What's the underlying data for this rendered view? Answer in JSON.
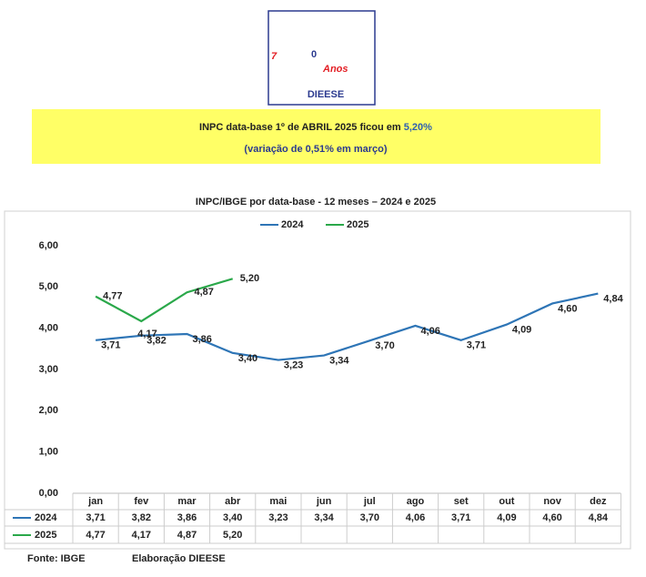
{
  "logo": {
    "digits": [
      "7",
      "0"
    ],
    "word": "Anos",
    "brand": "DIEESE"
  },
  "banner": {
    "line1": "INPC data-base 1º de ABRIL 2025 ficou em ",
    "highlight": "5,20%",
    "line2": "(variação de 0,51% em março)"
  },
  "chart_data": {
    "type": "line",
    "title": "INPC/IBGE por data-base - 12 meses – 2024 e 2025",
    "categories": [
      "jan",
      "fev",
      "mar",
      "abr",
      "mai",
      "jun",
      "jul",
      "ago",
      "set",
      "out",
      "nov",
      "dez"
    ],
    "series": [
      {
        "name": "2024",
        "color": "#2e75b6",
        "values": [
          3.71,
          3.82,
          3.86,
          3.4,
          3.23,
          3.34,
          3.7,
          4.06,
          3.71,
          4.09,
          4.6,
          4.84
        ],
        "value_labels": [
          "3,71",
          "3,82",
          "3,86",
          "3,40",
          "3,23",
          "3,34",
          "3,70",
          "4,06",
          "3,71",
          "4,09",
          "4,60",
          "4,84"
        ]
      },
      {
        "name": "2025",
        "color": "#2aa84a",
        "values": [
          4.77,
          4.17,
          4.87,
          5.2,
          null,
          null,
          null,
          null,
          null,
          null,
          null,
          null
        ],
        "value_labels": [
          "4,77",
          "4,17",
          "4,87",
          "5,20",
          null,
          null,
          null,
          null,
          null,
          null,
          null,
          null
        ]
      }
    ],
    "ylim": [
      0,
      6
    ],
    "yticks": [
      {
        "value": 0,
        "label": "0,00"
      },
      {
        "value": 1,
        "label": "1,00"
      },
      {
        "value": 2,
        "label": "2,00"
      },
      {
        "value": 3,
        "label": "3,00"
      },
      {
        "value": 4,
        "label": "4,00"
      },
      {
        "value": 5,
        "label": "5,00"
      },
      {
        "value": 6,
        "label": "6,00"
      }
    ],
    "legend": "top"
  },
  "footer": {
    "source": "Fonte: IBGE",
    "credit": "Elaboração DIEESE"
  }
}
